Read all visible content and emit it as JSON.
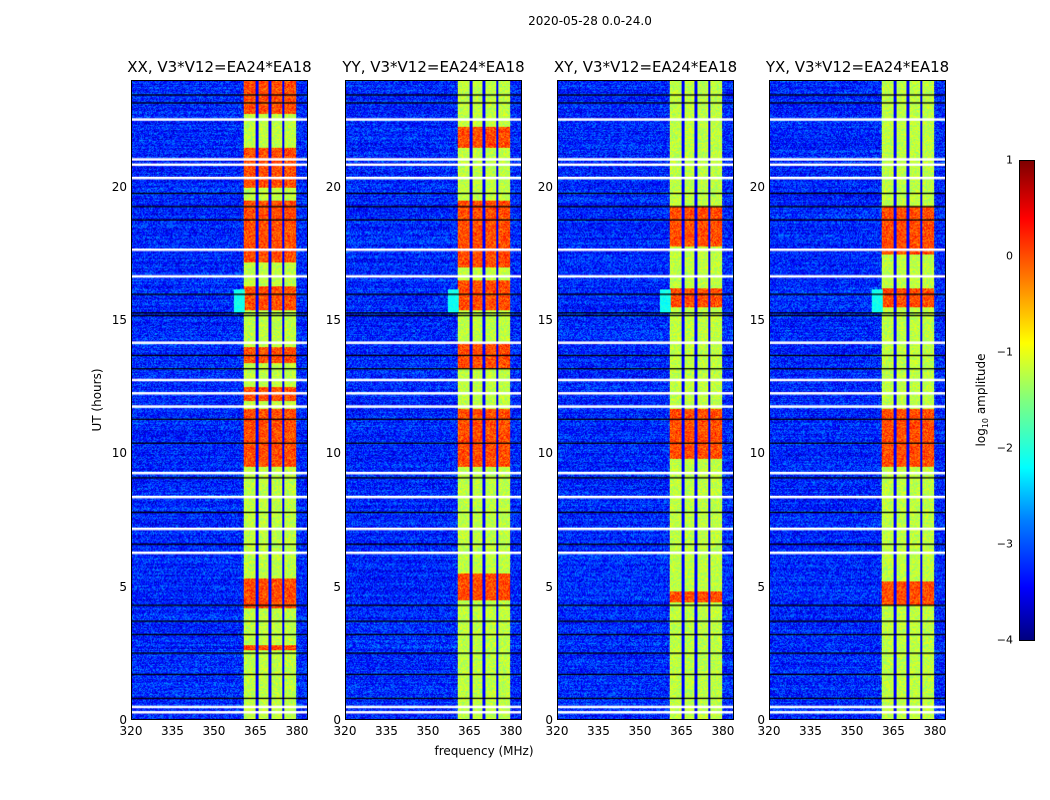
{
  "chart_data": {
    "type": "heatmap",
    "title": "2020-05-28 0.0-24.0",
    "xlabel": "frequency (MHz)",
    "ylabel": "UT (hours)",
    "xlim": [
      320,
      384
    ],
    "ylim": [
      0,
      24
    ],
    "xticks": [
      "320",
      "335",
      "350",
      "365",
      "380"
    ],
    "xtick_values": [
      320,
      335,
      350,
      365,
      380
    ],
    "yticks": [
      "0",
      "5",
      "10",
      "15",
      "20"
    ],
    "ytick_values": [
      0,
      5,
      10,
      15,
      20
    ],
    "colorbar": {
      "label_main": "log",
      "label_sub": "10",
      "label_rest": " amplitude",
      "range": [
        -4,
        1
      ],
      "ticks": [
        "1",
        "0",
        "−1",
        "−2",
        "−3",
        "−4"
      ],
      "tick_values": [
        1,
        0,
        -1,
        -2,
        -3,
        -4
      ],
      "colormap": "jet"
    },
    "background_level": -3.2,
    "band": {
      "start_mhz": 360.5,
      "end_mhz": 380,
      "level": -1.2,
      "gaps_mhz": [
        365.5,
        370.2,
        375.2
      ]
    },
    "flagged_hours_white": [
      22.6,
      21.1,
      20.9,
      20.4,
      17.7,
      16.7,
      14.2,
      12.8,
      12.3,
      11.8,
      9.3,
      8.4,
      7.2,
      6.3,
      0.5,
      0.3
    ],
    "flagged_hours_black": [
      23.5,
      23.2,
      19.8,
      19.3,
      18.8,
      16.0,
      15.3,
      15.2,
      13.7,
      13.2,
      11.3,
      10.4,
      9.1,
      7.8,
      6.6,
      4.3,
      3.7,
      3.2,
      2.5,
      1.7,
      0.8
    ],
    "panels": [
      {
        "title": "XX, V3*V12=EA24*EA18",
        "high_intervals_hours": [
          [
            9.5,
            11.7
          ],
          [
            12.0,
            12.5
          ],
          [
            13.4,
            14.0
          ],
          [
            15.4,
            16.3
          ],
          [
            17.2,
            19.5
          ],
          [
            20.0,
            21.5
          ],
          [
            22.8,
            24
          ],
          [
            4.2,
            5.3
          ],
          [
            2.6,
            2.8
          ]
        ]
      },
      {
        "title": "YY, V3*V12=EA24*EA18",
        "high_intervals_hours": [
          [
            9.5,
            11.7
          ],
          [
            13.2,
            14.2
          ],
          [
            15.4,
            16.5
          ],
          [
            17.0,
            19.5
          ],
          [
            21.5,
            22.3
          ],
          [
            4.5,
            5.5
          ]
        ]
      },
      {
        "title": "XY, V3*V12=EA24*EA18",
        "high_intervals_hours": [
          [
            9.8,
            11.7
          ],
          [
            15.5,
            16.2
          ],
          [
            17.8,
            19.3
          ],
          [
            4.4,
            4.8
          ]
        ]
      },
      {
        "title": "YX, V3*V12=EA24*EA18",
        "high_intervals_hours": [
          [
            9.5,
            11.7
          ],
          [
            15.5,
            16.2
          ],
          [
            17.5,
            19.3
          ],
          [
            4.3,
            5.2
          ]
        ]
      }
    ]
  }
}
